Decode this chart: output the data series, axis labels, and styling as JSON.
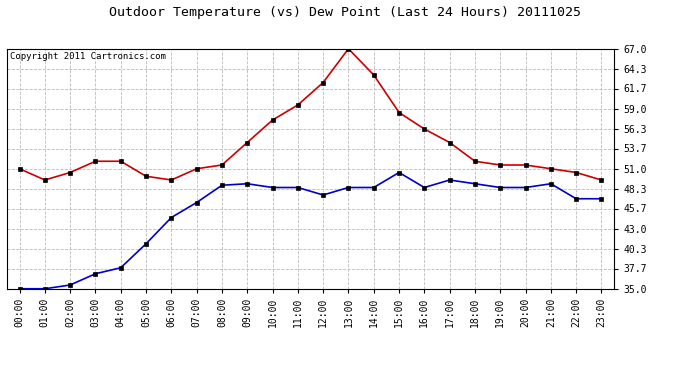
{
  "title": "Outdoor Temperature (vs) Dew Point (Last 24 Hours) 20111025",
  "copyright_text": "Copyright 2011 Cartronics.com",
  "x_labels": [
    "00:00",
    "01:00",
    "02:00",
    "03:00",
    "04:00",
    "05:00",
    "06:00",
    "07:00",
    "08:00",
    "09:00",
    "10:00",
    "11:00",
    "12:00",
    "13:00",
    "14:00",
    "15:00",
    "16:00",
    "17:00",
    "18:00",
    "19:00",
    "20:00",
    "21:00",
    "22:00",
    "23:00"
  ],
  "temp_red": [
    51.0,
    49.5,
    50.5,
    52.0,
    52.0,
    50.0,
    49.5,
    51.0,
    51.5,
    54.5,
    57.5,
    59.5,
    62.5,
    67.0,
    63.5,
    58.5,
    56.3,
    54.5,
    52.0,
    51.5,
    51.5,
    51.0,
    50.5,
    49.5
  ],
  "dew_blue": [
    35.0,
    35.0,
    35.5,
    37.0,
    37.8,
    41.0,
    44.5,
    46.5,
    48.8,
    49.0,
    48.5,
    48.5,
    47.5,
    48.5,
    48.5,
    50.5,
    48.5,
    49.5,
    49.0,
    48.5,
    48.5,
    49.0,
    47.0,
    47.0
  ],
  "y_ticks": [
    35.0,
    37.7,
    40.3,
    43.0,
    45.7,
    48.3,
    51.0,
    53.7,
    56.3,
    59.0,
    61.7,
    64.3,
    67.0
  ],
  "ylim": [
    35.0,
    67.0
  ],
  "red_color": "#cc0000",
  "blue_color": "#0000cc",
  "grid_color": "#bbbbbb",
  "bg_color": "#ffffff",
  "title_fontsize": 9.5,
  "copyright_fontsize": 6.5,
  "tick_fontsize": 7,
  "ytick_fontsize": 7
}
